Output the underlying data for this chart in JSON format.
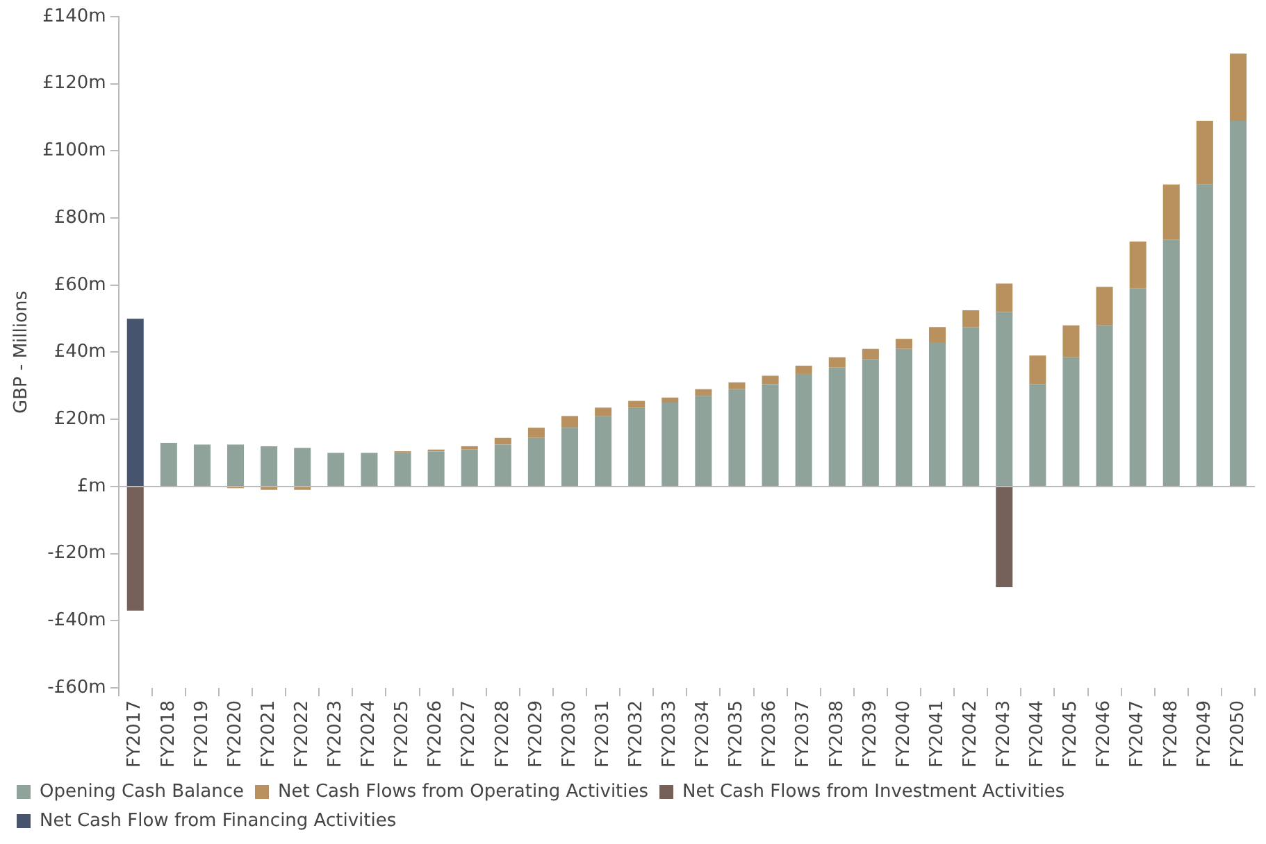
{
  "chart_data": {
    "type": "bar",
    "ylabel": "GBP - Millions",
    "stacked": true,
    "legend": "bottom",
    "grid": false,
    "ref_lines": [
      {
        "axis": "y",
        "value": 0,
        "color": "#bbbbbb"
      }
    ],
    "categories": [
      "FY2017",
      "FY2018",
      "FY2019",
      "FY2020",
      "FY2021",
      "FY2022",
      "FY2023",
      "FY2024",
      "FY2025",
      "FY2026",
      "FY2027",
      "FY2028",
      "FY2029",
      "FY2030",
      "FY2031",
      "FY2032",
      "FY2033",
      "FY2034",
      "FY2035",
      "FY2036",
      "FY2037",
      "FY2038",
      "FY2039",
      "FY2040",
      "FY2041",
      "FY2042",
      "FY2043",
      "FY2044",
      "FY2045",
      "FY2046",
      "FY2047",
      "FY2048",
      "FY2049",
      "FY2050"
    ],
    "series": [
      {
        "name": "Opening Cash Balance",
        "color": "#8fa39a",
        "values": [
          0,
          13,
          12.5,
          12.5,
          12,
          11.5,
          10,
          10,
          10,
          10.5,
          11,
          12.5,
          14.5,
          17.5,
          21,
          23.5,
          25,
          27,
          29,
          30.5,
          33.5,
          35.5,
          38,
          41,
          43,
          47.5,
          52,
          30.5,
          38.5,
          48,
          59,
          73.5,
          90,
          109
        ]
      },
      {
        "name": "Net Cash Flows from Operating Activities",
        "color": "#b8915f",
        "values": [
          0,
          0,
          0,
          -0.5,
          -1,
          -1,
          0,
          0,
          0.5,
          0.5,
          1,
          2,
          3,
          3.5,
          2.5,
          2,
          1.5,
          2,
          2,
          2.5,
          2.5,
          3,
          3,
          3,
          4.5,
          5,
          8.5,
          8.5,
          9.5,
          11.5,
          14,
          16.5,
          19,
          20
        ]
      },
      {
        "name": "Net Cash Flows from Investment Activities",
        "color": "#76615a",
        "values": [
          -37,
          0,
          0,
          0,
          0,
          0,
          0,
          0,
          0,
          0,
          0,
          0,
          0,
          0,
          0,
          0,
          0,
          0,
          0,
          0,
          0,
          0,
          0,
          0,
          0,
          0,
          -30,
          0,
          0,
          0,
          0,
          0,
          0,
          0
        ]
      },
      {
        "name": "Net Cash Flow from Financing Activities",
        "color": "#46546e",
        "values": [
          50,
          0,
          0,
          0,
          0,
          0,
          0,
          0,
          0,
          0,
          0,
          0,
          0,
          0,
          0,
          0,
          0,
          0,
          0,
          0,
          0,
          0,
          0,
          0,
          0,
          0,
          0,
          0,
          0,
          0,
          0,
          0,
          0,
          0
        ]
      }
    ],
    "ylim": [
      -60,
      140
    ],
    "yticks": [
      {
        "value": -60,
        "label": "-£60m"
      },
      {
        "value": -40,
        "label": "-£40m"
      },
      {
        "value": -20,
        "label": "-£20m"
      },
      {
        "value": 0,
        "label": "£m"
      },
      {
        "value": 20,
        "label": "£20m"
      },
      {
        "value": 40,
        "label": "£40m"
      },
      {
        "value": 60,
        "label": "£60m"
      },
      {
        "value": 80,
        "label": "£80m"
      },
      {
        "value": 100,
        "label": "£100m"
      },
      {
        "value": 120,
        "label": "£120m"
      },
      {
        "value": 140,
        "label": "£140m"
      }
    ]
  }
}
